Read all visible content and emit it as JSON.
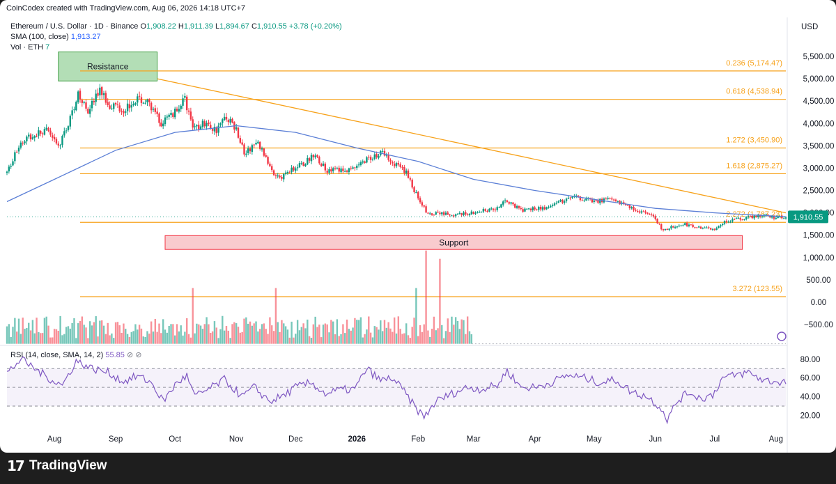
{
  "header": {
    "credit": "CoinCodex created with TradingView.com, Aug 06, 2026 14:18 UTC+7",
    "symbol": "Ethereum / U.S. Dollar · 1D · Binance",
    "ohlc": {
      "o_label": "O",
      "o": "1,908.22",
      "h_label": "H",
      "h": "1,911.39",
      "l_label": "L",
      "l": "1,894.67",
      "c_label": "C",
      "c": "1,910.55",
      "change": "+3.78 (+0.20%)"
    },
    "sma_label": "SMA (100, close)",
    "sma_value": "1,913.27",
    "vol_label": "Vol · ETH",
    "vol_value": "7",
    "currency": "USD"
  },
  "rsi_legend": {
    "label": "RSI (14, close, SMA, 14, 2)",
    "value": "55.85",
    "icons": [
      "eye-off-icon",
      "eye-off-icon"
    ]
  },
  "footer": {
    "brand": "TradingView",
    "logo_mark": "17"
  },
  "colors": {
    "up": "#089981",
    "down": "#f23645",
    "sma": "#5b7fd6",
    "fib": "#f7a21b",
    "trend": "#f7a21b",
    "rsi": "#7e57c2",
    "support_fill": "#f8c2c6",
    "support_stroke": "#f23645",
    "resistance_fill": "#a6d8a9",
    "resistance_stroke": "#43a047"
  },
  "chart_data": {
    "type": "candlestick",
    "title": "Ethereum / U.S. Dollar · 1D · Binance",
    "x_ticks": [
      "Aug",
      "Sep",
      "Oct",
      "Nov",
      "Dec",
      "2026",
      "Feb",
      "Mar",
      "Apr",
      "May",
      "Jun",
      "Jul",
      "Aug"
    ],
    "x_tick_dates": [
      "2025-08-01",
      "2025-09-01",
      "2025-10-01",
      "2025-11-01",
      "2025-12-01",
      "2026-01-01",
      "2026-02-01",
      "2026-03-01",
      "2026-04-01",
      "2026-05-01",
      "2026-06-01",
      "2026-07-01",
      "2026-08-01"
    ],
    "x_range": [
      "2025-07-08",
      "2026-08-06"
    ],
    "y_axis": {
      "label": "USD",
      "ticks": [
        "5,500.00",
        "5,000.00",
        "4,500.00",
        "4,000.00",
        "3,500.00",
        "3,000.00",
        "2,500.00",
        "2,000.00",
        "1,500.00",
        "1,000.00",
        "500.00",
        "0.00",
        "−500.00"
      ],
      "tick_values": [
        5500,
        5000,
        4500,
        4000,
        3500,
        3000,
        2500,
        2000,
        1500,
        1000,
        500,
        0,
        -500
      ],
      "ylim": [
        -900,
        5750
      ]
    },
    "last_price": "1,910.55",
    "price_path": [
      [
        "2025-07-08",
        2900
      ],
      [
        "2025-07-15",
        3600
      ],
      [
        "2025-07-22",
        3750
      ],
      [
        "2025-07-28",
        3850
      ],
      [
        "2025-08-03",
        3450
      ],
      [
        "2025-08-08",
        4000
      ],
      [
        "2025-08-13",
        4650
      ],
      [
        "2025-08-18",
        4300
      ],
      [
        "2025-08-24",
        4750
      ],
      [
        "2025-08-29",
        4400
      ],
      [
        "2025-09-05",
        4300
      ],
      [
        "2025-09-12",
        4550
      ],
      [
        "2025-09-17",
        4500
      ],
      [
        "2025-09-24",
        4000
      ],
      [
        "2025-09-30",
        4200
      ],
      [
        "2025-10-06",
        4550
      ],
      [
        "2025-10-10",
        3850
      ],
      [
        "2025-10-15",
        4000
      ],
      [
        "2025-10-22",
        3850
      ],
      [
        "2025-10-27",
        4150
      ],
      [
        "2025-11-01",
        3850
      ],
      [
        "2025-11-05",
        3350
      ],
      [
        "2025-11-12",
        3550
      ],
      [
        "2025-11-20",
        2900
      ],
      [
        "2025-11-23",
        2750
      ],
      [
        "2025-11-30",
        3000
      ],
      [
        "2025-12-05",
        3100
      ],
      [
        "2025-12-10",
        3300
      ],
      [
        "2025-12-17",
        2950
      ],
      [
        "2025-12-24",
        2950
      ],
      [
        "2025-12-31",
        2970
      ],
      [
        "2026-01-06",
        3200
      ],
      [
        "2026-01-14",
        3350
      ],
      [
        "2026-01-20",
        3100
      ],
      [
        "2026-01-26",
        2900
      ],
      [
        "2026-01-30",
        2500
      ],
      [
        "2026-02-03",
        2200
      ],
      [
        "2026-02-06",
        1950
      ],
      [
        "2026-02-12",
        2000
      ],
      [
        "2026-02-20",
        1950
      ],
      [
        "2026-02-28",
        2000
      ],
      [
        "2026-03-05",
        2050
      ],
      [
        "2026-03-14",
        2100
      ],
      [
        "2026-03-17",
        2300
      ],
      [
        "2026-03-25",
        2050
      ],
      [
        "2026-04-01",
        2100
      ],
      [
        "2026-04-08",
        2100
      ],
      [
        "2026-04-14",
        2250
      ],
      [
        "2026-04-22",
        2350
      ],
      [
        "2026-05-01",
        2250
      ],
      [
        "2026-05-08",
        2300
      ],
      [
        "2026-05-15",
        2200
      ],
      [
        "2026-05-23",
        2050
      ],
      [
        "2026-05-31",
        1900
      ],
      [
        "2026-06-05",
        1600
      ],
      [
        "2026-06-10",
        1700
      ],
      [
        "2026-06-15",
        1750
      ],
      [
        "2026-06-20",
        1700
      ],
      [
        "2026-06-25",
        1650
      ],
      [
        "2026-07-01",
        1650
      ],
      [
        "2026-07-06",
        1800
      ],
      [
        "2026-07-12",
        1850
      ],
      [
        "2026-07-18",
        1900
      ],
      [
        "2026-07-25",
        1950
      ],
      [
        "2026-07-31",
        1900
      ],
      [
        "2026-08-06",
        1910
      ]
    ],
    "sma_series": {
      "name": "SMA (100, close)",
      "points": [
        [
          "2025-07-08",
          2250
        ],
        [
          "2025-08-01",
          2750
        ],
        [
          "2025-09-01",
          3400
        ],
        [
          "2025-10-01",
          3800
        ],
        [
          "2025-11-01",
          3950
        ],
        [
          "2025-12-01",
          3800
        ],
        [
          "2026-01-01",
          3450
        ],
        [
          "2026-02-01",
          3150
        ],
        [
          "2026-03-01",
          2750
        ],
        [
          "2026-04-01",
          2500
        ],
        [
          "2026-05-01",
          2300
        ],
        [
          "2026-06-01",
          2100
        ],
        [
          "2026-07-01",
          2000
        ],
        [
          "2026-08-06",
          1913
        ]
      ]
    },
    "fib_levels": [
      {
        "label": "0.236 (5,174.47)",
        "value": 5174.47
      },
      {
        "label": "0.618 (4,538.94)",
        "value": 4538.94
      },
      {
        "label": "1.272 (3,450.90)",
        "value": 3450.9
      },
      {
        "label": "1.618 (2,875.27)",
        "value": 2875.27
      },
      {
        "label": "2.272 (1,787.23)",
        "value": 1787.23
      },
      {
        "label": "3.272 (123.55)",
        "value": 123.55
      }
    ],
    "fib_start": "2025-08-14",
    "trendline": {
      "from": [
        "2025-09-22",
        5000
      ],
      "to": [
        "2026-08-06",
        2000
      ]
    },
    "zones": [
      {
        "label": "Resistance",
        "x0": "2025-08-03",
        "x1": "2025-09-22",
        "y0": 4950,
        "y1": 5600
      },
      {
        "label": "Support",
        "x0": "2025-09-26",
        "x1": "2026-07-15",
        "y0": 1180,
        "y1": 1490
      }
    ],
    "volume_zone": {
      "from": "2025-07-08",
      "to": "2026-02-28"
    },
    "volume_spikes": [
      [
        "2025-10-10",
        1.0
      ],
      [
        "2025-11-21",
        1.0
      ],
      [
        "2026-02-05",
        1.9
      ],
      [
        "2026-02-12",
        1.7
      ],
      [
        "2026-01-31",
        1.0
      ]
    ],
    "rsi": {
      "label": "RSI (14, close, SMA, 14, 2)",
      "value": 55.85,
      "ticks": [
        "80.00",
        "60.00",
        "40.00",
        "20.00"
      ],
      "tick_values": [
        80,
        60,
        40,
        20
      ],
      "ylim": [
        10,
        88
      ],
      "band": [
        30,
        70
      ],
      "points": [
        [
          "2025-07-08",
          65
        ],
        [
          "2025-07-15",
          80
        ],
        [
          "2025-07-22",
          70
        ],
        [
          "2025-07-29",
          60
        ],
        [
          "2025-08-05",
          52
        ],
        [
          "2025-08-12",
          78
        ],
        [
          "2025-08-20",
          70
        ],
        [
          "2025-08-28",
          66
        ],
        [
          "2025-09-05",
          56
        ],
        [
          "2025-09-12",
          62
        ],
        [
          "2025-09-19",
          55
        ],
        [
          "2025-09-25",
          35
        ],
        [
          "2025-10-02",
          55
        ],
        [
          "2025-10-07",
          62
        ],
        [
          "2025-10-11",
          40
        ],
        [
          "2025-10-18",
          48
        ],
        [
          "2025-10-26",
          58
        ],
        [
          "2025-11-04",
          40
        ],
        [
          "2025-11-10",
          50
        ],
        [
          "2025-11-18",
          35
        ],
        [
          "2025-11-24",
          40
        ],
        [
          "2025-12-01",
          50
        ],
        [
          "2025-12-09",
          55
        ],
        [
          "2025-12-16",
          43
        ],
        [
          "2025-12-23",
          47
        ],
        [
          "2025-12-31",
          48
        ],
        [
          "2026-01-06",
          70
        ],
        [
          "2026-01-13",
          57
        ],
        [
          "2026-01-19",
          60
        ],
        [
          "2026-01-25",
          45
        ],
        [
          "2026-01-30",
          30
        ],
        [
          "2026-02-04",
          18
        ],
        [
          "2026-02-10",
          35
        ],
        [
          "2026-02-18",
          43
        ],
        [
          "2026-02-26",
          50
        ],
        [
          "2026-03-05",
          48
        ],
        [
          "2026-03-13",
          52
        ],
        [
          "2026-03-18",
          68
        ],
        [
          "2026-03-25",
          50
        ],
        [
          "2026-04-02",
          50
        ],
        [
          "2026-04-10",
          56
        ],
        [
          "2026-04-18",
          63
        ],
        [
          "2026-04-26",
          60
        ],
        [
          "2026-05-04",
          55
        ],
        [
          "2026-05-12",
          58
        ],
        [
          "2026-05-20",
          45
        ],
        [
          "2026-05-28",
          40
        ],
        [
          "2026-06-04",
          28
        ],
        [
          "2026-06-07",
          15
        ],
        [
          "2026-06-12",
          35
        ],
        [
          "2026-06-18",
          45
        ],
        [
          "2026-06-24",
          38
        ],
        [
          "2026-06-30",
          42
        ],
        [
          "2026-07-05",
          60
        ],
        [
          "2026-07-12",
          63
        ],
        [
          "2026-07-18",
          66
        ],
        [
          "2026-07-25",
          58
        ],
        [
          "2026-07-31",
          56
        ],
        [
          "2026-08-06",
          56
        ]
      ]
    }
  }
}
